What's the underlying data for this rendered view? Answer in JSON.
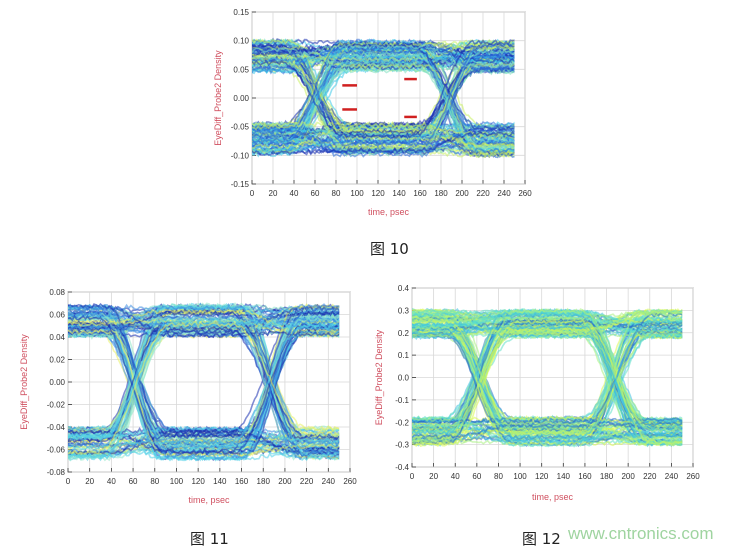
{
  "chart_data": [
    {
      "type": "line",
      "subtype": "eye-diagram-density",
      "caption": "图 10",
      "xlabel": "time, psec",
      "ylabel": "EyeDiff_Probe2 Density",
      "xlim": [
        0,
        260
      ],
      "ylim": [
        -0.15,
        0.15
      ],
      "xticks": [
        "0",
        "20",
        "40",
        "60",
        "80",
        "100",
        "120",
        "140",
        "160",
        "180",
        "200",
        "220",
        "240",
        "260"
      ],
      "yticks": [
        "0.15",
        "0.10",
        "0.05",
        "0.00",
        "-0.05",
        "-0.10",
        "-0.15"
      ],
      "ytick_values": [
        0.15,
        0.1,
        0.05,
        0.0,
        -0.05,
        -0.1,
        -0.15
      ],
      "grid": true,
      "eye": {
        "time_range": [
          0,
          250
        ],
        "crossings": [
          62,
          187
        ],
        "high_level": [
          0.035,
          0.1
        ],
        "low_level": [
          -0.1,
          -0.035
        ],
        "crossing_level": 0.0
      },
      "markers": [
        {
          "x": [
            86,
            100
          ],
          "y": 0.022,
          "color": "#d02020"
        },
        {
          "x": [
            86,
            100
          ],
          "y": -0.02,
          "color": "#d02020"
        },
        {
          "x": [
            145,
            157
          ],
          "y": 0.033,
          "color": "#d02020"
        },
        {
          "x": [
            145,
            157
          ],
          "y": -0.033,
          "color": "#d02020"
        }
      ],
      "colors": [
        "#1a2fb0",
        "#2a6ad8",
        "#3ec8e8",
        "#7fe0c0",
        "#c8f060"
      ]
    },
    {
      "type": "line",
      "subtype": "eye-diagram-density",
      "caption": "图 11",
      "xlabel": "time, psec",
      "ylabel": "EyeDiff_Probe2 Density",
      "xlim": [
        0,
        260
      ],
      "ylim": [
        -0.08,
        0.08
      ],
      "xticks": [
        "0",
        "20",
        "40",
        "60",
        "80",
        "100",
        "120",
        "140",
        "160",
        "180",
        "200",
        "220",
        "240",
        "260"
      ],
      "yticks": [
        "0.08",
        "0.06",
        "0.04",
        "0.02",
        "0.00",
        "-0.02",
        "-0.04",
        "-0.06",
        "-0.08"
      ],
      "ytick_values": [
        0.08,
        0.06,
        0.04,
        0.02,
        0.0,
        -0.02,
        -0.04,
        -0.06,
        -0.08
      ],
      "grid": true,
      "eye": {
        "time_range": [
          0,
          250
        ],
        "crossings": [
          62,
          187
        ],
        "high_level": [
          0.036,
          0.068
        ],
        "low_level": [
          -0.068,
          -0.036
        ],
        "crossing_level": 0.0
      },
      "colors": [
        "#1a2fb0",
        "#3a8ae0",
        "#4fd0e8",
        "#8fe8c8",
        "#e8f060"
      ]
    },
    {
      "type": "line",
      "subtype": "eye-diagram-density",
      "caption": "图 12",
      "xlabel": "time, psec",
      "ylabel": "EyeDiff_Probe2 Density",
      "xlim": [
        0,
        260
      ],
      "ylim": [
        -0.4,
        0.4
      ],
      "xticks": [
        "0",
        "20",
        "40",
        "60",
        "80",
        "100",
        "120",
        "140",
        "160",
        "180",
        "200",
        "220",
        "240",
        "260"
      ],
      "yticks": [
        "0.4",
        "0.3",
        "0.2",
        "0.1",
        "0.0",
        "-0.1",
        "-0.2",
        "-0.3",
        "-0.4"
      ],
      "ytick_values": [
        0.4,
        0.3,
        0.2,
        0.1,
        0.0,
        -0.1,
        -0.2,
        -0.3,
        -0.4
      ],
      "grid": true,
      "eye": {
        "time_range": [
          0,
          250
        ],
        "crossings": [
          62,
          187
        ],
        "high_level": [
          0.16,
          0.3
        ],
        "low_level": [
          -0.3,
          -0.16
        ],
        "crossing_level": 0.0
      },
      "colors": [
        "#2a70c8",
        "#3ec0e0",
        "#60e0c8",
        "#a8f080",
        "#d8f850"
      ]
    }
  ],
  "watermark": "www.cntronics.com"
}
